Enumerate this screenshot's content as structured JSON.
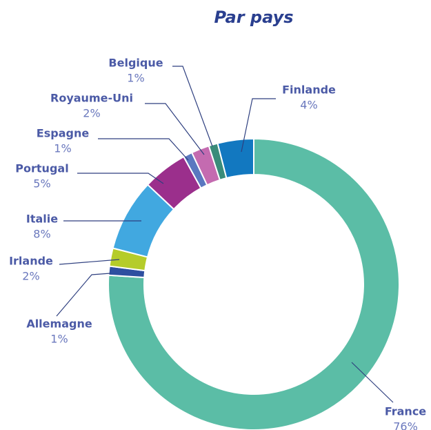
{
  "chart_data": {
    "type": "donut",
    "title": "Par pays",
    "categories": [
      "France",
      "Allemagne",
      "Irlande",
      "Italie",
      "Portugal",
      "Espagne",
      "Royaume-Uni",
      "Belgique",
      "Finlande"
    ],
    "values": [
      76,
      1,
      2,
      8,
      5,
      1,
      2,
      1,
      4
    ],
    "value_labels": [
      "76%",
      "1%",
      "2%",
      "8%",
      "5%",
      "1%",
      "2%",
      "1%",
      "4%"
    ],
    "colors": [
      "#5bbda6",
      "#2e4fa0",
      "#b5cc2a",
      "#41a8e0",
      "#9b2f8c",
      "#5a78c0",
      "#c46bb0",
      "#3a8c7a",
      "#1278c0"
    ]
  }
}
